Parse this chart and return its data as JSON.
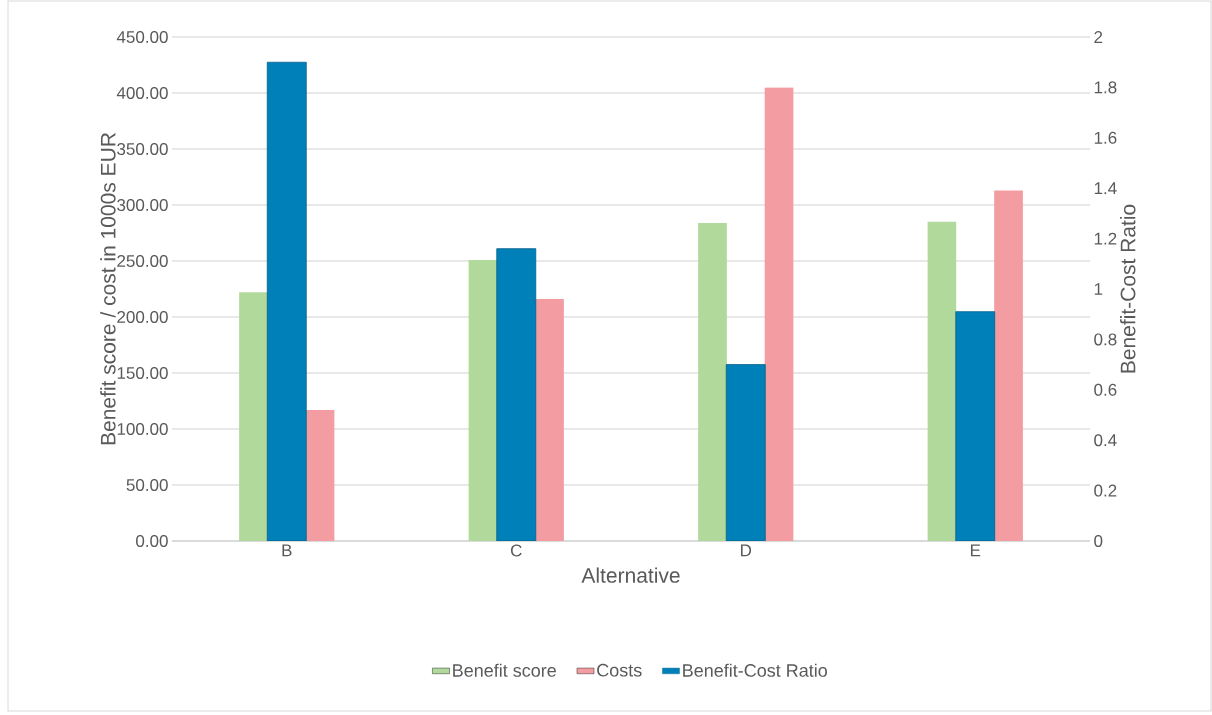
{
  "chart_data": {
    "type": "bar",
    "xlabel": "Alternative",
    "ylabel": "Benefit score / cost in 1000s EUR",
    "y2label": "Benefit-Cost Ratio",
    "categories": [
      "B",
      "C",
      "D",
      "E"
    ],
    "series": [
      {
        "name": "Benefit score",
        "color": "#b1d99b",
        "values": [
          222,
          251,
          284,
          285
        ]
      },
      {
        "name": "Costs",
        "color": "#f39da3",
        "values": [
          117,
          216,
          405,
          313
        ]
      },
      {
        "name": "Benefit-Cost Ratio",
        "color": "#0080b8",
        "axis": "y2",
        "values": [
          1.9,
          1.16,
          0.7,
          0.91
        ]
      }
    ],
    "ylim": [
      0,
      450
    ],
    "yticks": [
      {
        "value": 0,
        "label": "0.00"
      },
      {
        "value": 50,
        "label": "50.00"
      },
      {
        "value": 100,
        "label": "100.00"
      },
      {
        "value": 150,
        "label": "150.00"
      },
      {
        "value": 200,
        "label": "200.00"
      },
      {
        "value": 250,
        "label": "250.00"
      },
      {
        "value": 300,
        "label": "300.00"
      },
      {
        "value": 350,
        "label": "350.00"
      },
      {
        "value": 400,
        "label": "400.00"
      },
      {
        "value": 450,
        "label": "450.00"
      }
    ],
    "y2lim": [
      0,
      2
    ],
    "y2ticks": [
      0,
      0.2,
      0.4,
      0.6,
      0.8,
      1,
      1.2,
      1.4,
      1.6,
      1.8,
      2
    ],
    "grid": "y",
    "legend": "bottom"
  }
}
